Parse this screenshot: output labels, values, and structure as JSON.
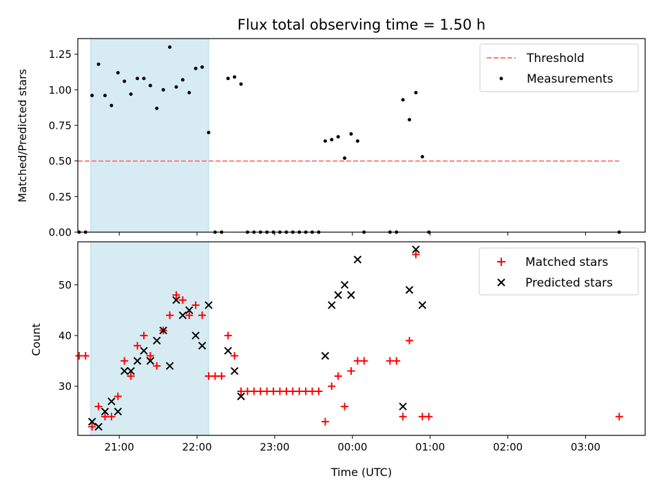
{
  "title": "Flux total observing time = 1.50 h",
  "colors": {
    "threshold": "#ff7b7b",
    "measurements": "#000000",
    "matched": "#ff0000",
    "predicted": "#000000",
    "highlight": "#add8e6"
  },
  "chart_data": [
    {
      "type": "scatter",
      "ylabel": "Matched/Predicted stars",
      "xlim": [
        "20:28",
        "03:46"
      ],
      "ylim": [
        0,
        1.36
      ],
      "yticks": [
        0.0,
        0.25,
        0.5,
        0.75,
        1.0,
        1.25
      ],
      "ytick_labels": [
        "0.00",
        "0.25",
        "0.50",
        "0.75",
        "1.00",
        "1.25"
      ],
      "highlight_span": [
        "20:38",
        "22:09"
      ],
      "threshold": {
        "y": 0.5,
        "x": [
          "20:28",
          "03:26"
        ]
      },
      "legend": {
        "position": "top-right",
        "entries": [
          "Threshold",
          "Measurements"
        ]
      },
      "series": [
        {
          "name": "Measurements",
          "points": [
            [
              "20:29",
              0
            ],
            [
              "20:34",
              0
            ],
            [
              "20:39",
              0.96
            ],
            [
              "20:44",
              1.18
            ],
            [
              "20:49",
              0.96
            ],
            [
              "20:54",
              0.89
            ],
            [
              "20:59",
              1.12
            ],
            [
              "21:04",
              1.06
            ],
            [
              "21:09",
              0.97
            ],
            [
              "21:14",
              1.08
            ],
            [
              "21:19",
              1.08
            ],
            [
              "21:24",
              1.03
            ],
            [
              "21:29",
              0.87
            ],
            [
              "21:34",
              1.0
            ],
            [
              "21:39",
              1.3
            ],
            [
              "21:44",
              1.02
            ],
            [
              "21:49",
              1.07
            ],
            [
              "21:54",
              0.98
            ],
            [
              "21:59",
              1.15
            ],
            [
              "22:04",
              1.16
            ],
            [
              "22:09",
              0.7
            ],
            [
              "22:14",
              0
            ],
            [
              "22:19",
              0
            ],
            [
              "22:24",
              1.08
            ],
            [
              "22:29",
              1.09
            ],
            [
              "22:34",
              1.04
            ],
            [
              "22:39",
              0
            ],
            [
              "22:44",
              0
            ],
            [
              "22:49",
              0
            ],
            [
              "22:54",
              0
            ],
            [
              "22:59",
              0
            ],
            [
              "23:04",
              0
            ],
            [
              "23:09",
              0
            ],
            [
              "23:14",
              0
            ],
            [
              "23:19",
              0
            ],
            [
              "23:24",
              0
            ],
            [
              "23:29",
              0
            ],
            [
              "23:34",
              0
            ],
            [
              "23:39",
              0.64
            ],
            [
              "23:44",
              0.65
            ],
            [
              "23:49",
              0.67
            ],
            [
              "23:54",
              0.52
            ],
            [
              "23:59",
              0.69
            ],
            [
              "00:04",
              0.64
            ],
            [
              "00:09",
              0
            ],
            [
              "00:29",
              0
            ],
            [
              "00:34",
              0
            ],
            [
              "00:39",
              0.93
            ],
            [
              "00:44",
              0.79
            ],
            [
              "00:49",
              0.98
            ],
            [
              "00:54",
              0.53
            ],
            [
              "00:59",
              0
            ],
            [
              "03:26",
              0
            ]
          ]
        }
      ]
    },
    {
      "type": "scatter",
      "ylabel": "Count",
      "xlabel": "Time (UTC)",
      "xlim": [
        "20:28",
        "03:46"
      ],
      "ylim": [
        20.3,
        58.5
      ],
      "yticks": [
        30,
        40,
        50
      ],
      "ytick_labels": [
        "30",
        "40",
        "50"
      ],
      "xticks": [
        "21:00",
        "22:00",
        "23:00",
        "00:00",
        "01:00",
        "02:00",
        "03:00"
      ],
      "highlight_span": [
        "20:38",
        "22:09"
      ],
      "legend": {
        "position": "top-right",
        "entries": [
          "Matched stars",
          "Predicted stars"
        ]
      },
      "series": [
        {
          "name": "Matched stars",
          "marker": "plus",
          "points": [
            [
              "20:29",
              36
            ],
            [
              "20:34",
              36
            ],
            [
              "20:39",
              22
            ],
            [
              "20:44",
              26
            ],
            [
              "20:49",
              24
            ],
            [
              "20:54",
              24
            ],
            [
              "20:59",
              28
            ],
            [
              "21:04",
              35
            ],
            [
              "21:09",
              32
            ],
            [
              "21:14",
              38
            ],
            [
              "21:19",
              40
            ],
            [
              "21:24",
              36
            ],
            [
              "21:29",
              34
            ],
            [
              "21:34",
              41
            ],
            [
              "21:39",
              44
            ],
            [
              "21:44",
              48
            ],
            [
              "21:49",
              47
            ],
            [
              "21:54",
              44
            ],
            [
              "21:59",
              46
            ],
            [
              "22:04",
              44
            ],
            [
              "22:09",
              32
            ],
            [
              "22:14",
              32
            ],
            [
              "22:19",
              32
            ],
            [
              "22:24",
              40
            ],
            [
              "22:29",
              36
            ],
            [
              "22:34",
              29
            ],
            [
              "22:39",
              29
            ],
            [
              "22:44",
              29
            ],
            [
              "22:49",
              29
            ],
            [
              "22:54",
              29
            ],
            [
              "22:59",
              29
            ],
            [
              "23:04",
              29
            ],
            [
              "23:09",
              29
            ],
            [
              "23:14",
              29
            ],
            [
              "23:19",
              29
            ],
            [
              "23:24",
              29
            ],
            [
              "23:29",
              29
            ],
            [
              "23:34",
              29
            ],
            [
              "23:39",
              23
            ],
            [
              "23:44",
              30
            ],
            [
              "23:49",
              32
            ],
            [
              "23:54",
              26
            ],
            [
              "23:59",
              33
            ],
            [
              "00:04",
              35
            ],
            [
              "00:09",
              35
            ],
            [
              "00:29",
              35
            ],
            [
              "00:34",
              35
            ],
            [
              "00:39",
              24
            ],
            [
              "00:44",
              39
            ],
            [
              "00:49",
              56
            ],
            [
              "00:54",
              24
            ],
            [
              "00:59",
              24
            ],
            [
              "03:26",
              24
            ]
          ]
        },
        {
          "name": "Predicted stars",
          "marker": "x",
          "points": [
            [
              "20:39",
              23
            ],
            [
              "20:44",
              22
            ],
            [
              "20:49",
              25
            ],
            [
              "20:54",
              27
            ],
            [
              "20:59",
              25
            ],
            [
              "21:04",
              33
            ],
            [
              "21:09",
              33
            ],
            [
              "21:14",
              35
            ],
            [
              "21:19",
              37
            ],
            [
              "21:24",
              35
            ],
            [
              "21:29",
              39
            ],
            [
              "21:34",
              41
            ],
            [
              "21:39",
              34
            ],
            [
              "21:44",
              47
            ],
            [
              "21:49",
              44
            ],
            [
              "21:54",
              45
            ],
            [
              "21:59",
              40
            ],
            [
              "22:04",
              38
            ],
            [
              "22:09",
              46
            ],
            [
              "22:24",
              37
            ],
            [
              "22:29",
              33
            ],
            [
              "22:34",
              28
            ],
            [
              "23:39",
              36
            ],
            [
              "23:44",
              46
            ],
            [
              "23:49",
              48
            ],
            [
              "23:54",
              50
            ],
            [
              "23:59",
              48
            ],
            [
              "00:04",
              55
            ],
            [
              "00:39",
              26
            ],
            [
              "00:44",
              49
            ],
            [
              "00:49",
              57
            ],
            [
              "00:54",
              46
            ]
          ]
        }
      ]
    }
  ]
}
